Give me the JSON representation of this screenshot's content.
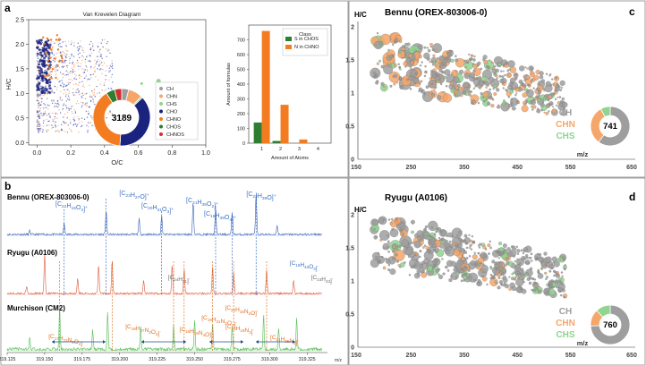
{
  "panel_labels": {
    "a": "a",
    "b": "b",
    "c": "c",
    "d": "d"
  },
  "colors": {
    "CH": "#9e9e9e",
    "CHN": "#f5a66a",
    "CHS": "#8fd48f",
    "CHO": "#1a237e",
    "CHNO": "#f47c20",
    "CHOS": "#2e7d32",
    "CHNOS": "#d32f2f",
    "bennu_line": "#3a62b8",
    "ryugu_line": "#e05a3a",
    "murchison_line": "#5bbf5b",
    "blue_label": "#3a6fc4",
    "orange_label": "#e07020",
    "gray_label": "#6b6b6b"
  },
  "chart_data": [
    {
      "id": "van-krevelen",
      "type": "scatter",
      "title": "Van Krevelen Diagram",
      "xlabel": "O/C",
      "ylabel": "H/C",
      "xlim": [
        -0.05,
        1.0
      ],
      "ylim": [
        -0.05,
        2.5
      ],
      "xticks": [
        "0.0",
        "0.2",
        "0.4",
        "0.6",
        "0.8",
        "1.0"
      ],
      "yticks": [
        "0.0",
        "0.5",
        "1.0",
        "1.5",
        "2.0",
        "2.5"
      ],
      "legend": [
        "CH",
        "CHN",
        "CHS",
        "CHO",
        "CHNO",
        "CHOS",
        "CHNOS"
      ],
      "donut": {
        "center_label": "3189",
        "slices": [
          {
            "class": "CH",
            "value": 4
          },
          {
            "class": "CHN",
            "value": 8
          },
          {
            "class": "CHS",
            "value": 1
          },
          {
            "class": "CHO",
            "value": 38
          },
          {
            "class": "CHNO",
            "value": 40
          },
          {
            "class": "CHOS",
            "value": 5
          },
          {
            "class": "CHNOS",
            "value": 4
          }
        ]
      }
    },
    {
      "id": "formula-bars",
      "type": "bar",
      "xlabel": "Amount of Atoms",
      "ylabel": "Amount of formulas",
      "ylim": [
        0,
        800
      ],
      "yticks": [
        "0",
        "100",
        "200",
        "300",
        "400",
        "500",
        "600",
        "700"
      ],
      "categories": [
        "1",
        "2",
        "3",
        "4"
      ],
      "legend_title": "Class",
      "series": [
        {
          "name": "S in CHOS",
          "values": [
            140,
            15,
            0,
            0
          ]
        },
        {
          "name": "N in CHNO",
          "values": [
            760,
            260,
            25,
            0
          ]
        }
      ]
    },
    {
      "id": "mass-spectra",
      "type": "line",
      "xlabel": "m/z",
      "xlim": [
        319.125,
        319.335
      ],
      "xticks": [
        "319.125",
        "319.150",
        "319.175",
        "319.200",
        "319.225",
        "319.250",
        "319.275",
        "319.300",
        "319.325"
      ],
      "series": [
        {
          "name": "Bennu (OREX-803006-0)",
          "peaks": [
            [
              319.14,
              0.08
            ],
            [
              319.163,
              0.25
            ],
            [
              319.191,
              0.55
            ],
            [
              319.213,
              0.35
            ],
            [
              319.228,
              0.42
            ],
            [
              319.249,
              0.75
            ],
            [
              319.264,
              0.6
            ],
            [
              319.275,
              0.5
            ],
            [
              319.291,
              0.95
            ],
            [
              319.305,
              0.2
            ]
          ]
        },
        {
          "name": "Ryugu (A0106)",
          "peaks": [
            [
              319.138,
              0.15
            ],
            [
              319.15,
              0.9
            ],
            [
              319.172,
              0.35
            ],
            [
              319.186,
              0.65
            ],
            [
              319.195,
              0.75
            ],
            [
              319.216,
              0.3
            ],
            [
              319.235,
              0.65
            ],
            [
              319.243,
              0.55
            ],
            [
              319.262,
              0.6
            ],
            [
              319.276,
              0.5
            ],
            [
              319.298,
              0.55
            ],
            [
              319.316,
              0.3
            ]
          ]
        },
        {
          "name": "Murchison (CM2)",
          "peaks": [
            [
              319.14,
              0.25
            ],
            [
              319.16,
              0.95
            ],
            [
              319.182,
              0.45
            ],
            [
              319.192,
              0.85
            ],
            [
              319.214,
              0.5
            ],
            [
              319.236,
              0.55
            ],
            [
              319.25,
              0.65
            ],
            [
              319.262,
              0.6
            ],
            [
              319.275,
              0.5
            ],
            [
              319.296,
              0.8
            ],
            [
              319.306,
              0.5
            ],
            [
              319.318,
              0.7
            ]
          ]
        }
      ]
    },
    {
      "id": "bennu-bubbles",
      "type": "scatter",
      "title": "Bennu (OREX-803006-0)",
      "ylabel": "H/C",
      "xlabel": "m/z",
      "xlim": [
        150,
        650
      ],
      "ylim": [
        0,
        2
      ],
      "xticks": [
        "150",
        "250",
        "350",
        "450",
        "550",
        "650"
      ],
      "yticks": [
        "0",
        "0.5",
        "1",
        "1.5",
        "2"
      ],
      "legend": [
        "CH",
        "CHN",
        "CHS"
      ],
      "donut": {
        "center_label": "741",
        "slices": [
          {
            "class": "CH",
            "value": 60
          },
          {
            "class": "CHN",
            "value": 32
          },
          {
            "class": "CHS",
            "value": 8
          }
        ]
      }
    },
    {
      "id": "ryugu-bubbles",
      "type": "scatter",
      "title": "Ryugu (A0106)",
      "ylabel": "H/C",
      "xlabel": "m/z",
      "xlim": [
        150,
        650
      ],
      "ylim": [
        0,
        2
      ],
      "xticks": [
        "150",
        "250",
        "350",
        "450",
        "550",
        "650"
      ],
      "yticks": [
        "0",
        "0.5",
        "1",
        "1.5",
        "2"
      ],
      "legend": [
        "CH",
        "CHN",
        "CHS"
      ],
      "donut": {
        "center_label": "760",
        "slices": [
          {
            "class": "CH",
            "value": 74
          },
          {
            "class": "CHN",
            "value": 14
          },
          {
            "class": "CHS",
            "value": 12
          }
        ]
      }
    }
  ],
  "spectra_annotations": {
    "bennu": [
      {
        "label": "[C22H15O2]+",
        "mz": 319.163,
        "color": "blue"
      },
      {
        "label": "[C23H27O]+",
        "mz": 319.191,
        "color": "blue"
      },
      {
        "label": "[C20H31O3]+",
        "mz": 319.228,
        "color": "blue"
      },
      {
        "label": "[C21H35O2]+",
        "mz": 319.264,
        "color": "blue"
      },
      {
        "label": "[C18H39O4]+",
        "mz": 319.275,
        "color": "blue"
      },
      {
        "label": "[C22H39O]+",
        "mz": 319.291,
        "color": "blue"
      }
    ],
    "ryugu": [
      {
        "label": "[C24H31]-",
        "mz": 319.236,
        "color": "gray"
      },
      {
        "label": "[C19H43O3]-",
        "mz": 319.316,
        "color": "blue"
      },
      {
        "label": "[C23H43]-",
        "mz": 319.333,
        "color": "gray"
      }
    ],
    "murchison": [
      {
        "label": "[C20H15N2O]-",
        "mz": 319.262,
        "color": "orange"
      },
      {
        "label": "[C19H31N2O2]-",
        "mz": 319.243,
        "color": "orange"
      },
      {
        "label": "[C23H19N2]-",
        "mz": 319.276,
        "color": "orange"
      },
      {
        "label": "[C19H27N2O3]-",
        "mz": 319.195,
        "color": "orange"
      },
      {
        "label": "[C18H19N4O]-",
        "mz": 319.236,
        "color": "orange"
      },
      {
        "label": "[C17H23N2O4]-",
        "mz": 319.16,
        "color": "orange"
      },
      {
        "label": "[C21H35N2]-",
        "mz": 319.298,
        "color": "orange"
      }
    ]
  }
}
